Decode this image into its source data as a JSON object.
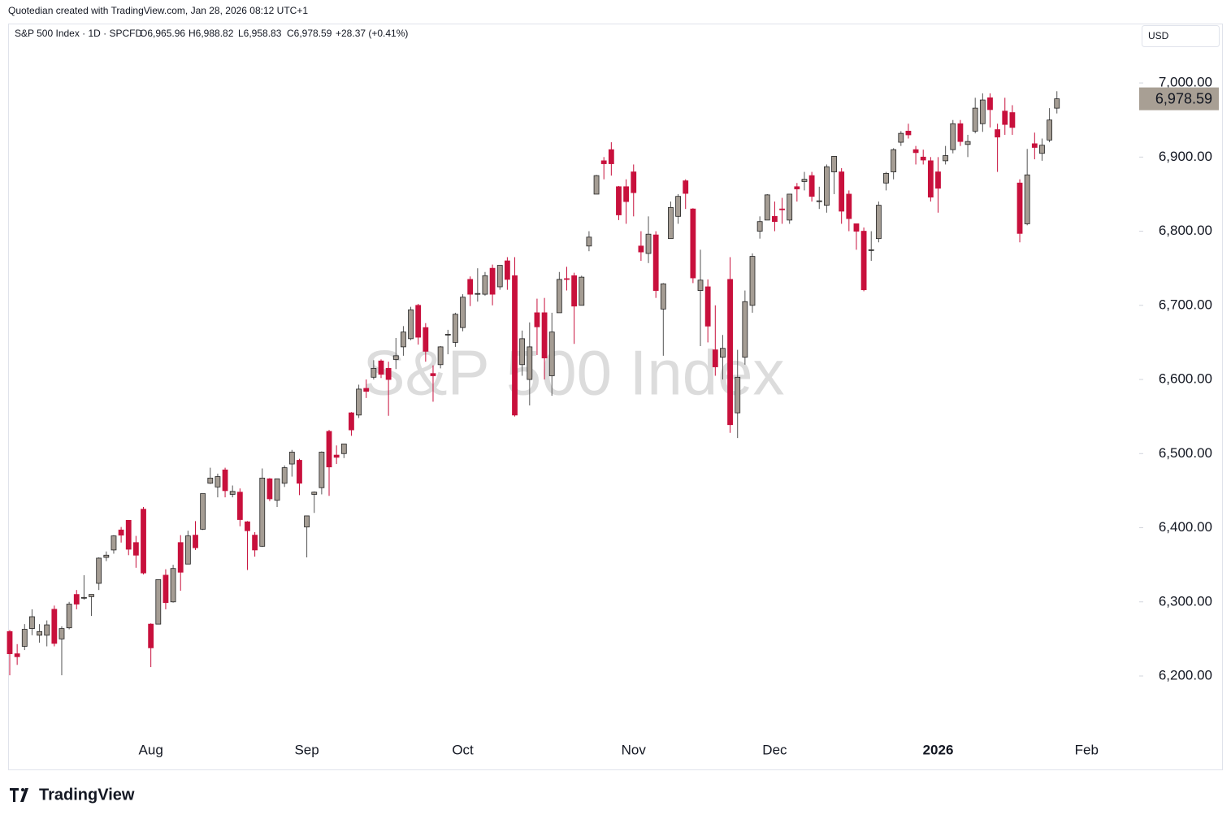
{
  "header": {
    "credit": "Quotedian created with TradingView.com, Jan 28, 2026 08:12 UTC+1"
  },
  "legend": {
    "symbol": "S&P 500 Index · 1D · SPCFD",
    "open": "O6,965.96",
    "high": "H6,988.82",
    "low": "L6,958.83",
    "close": "C6,978.59",
    "change": "+28.37 (+0.41%)"
  },
  "currency": "USD",
  "watermark": "S&P 500 Index",
  "footer": {
    "brand": "TradingView"
  },
  "chart_data": {
    "type": "candlestick",
    "up_color": "#a59d94",
    "down_color": "#c8103c",
    "categories": [
      null,
      null,
      null,
      null,
      null,
      null,
      null,
      null,
      null,
      null,
      null,
      null,
      null,
      null,
      null,
      null,
      null,
      null,
      null,
      "Aug",
      null,
      null,
      null,
      null,
      null,
      null,
      null,
      null,
      null,
      null,
      null,
      null,
      null,
      null,
      null,
      null,
      null,
      null,
      null,
      null,
      "Sep",
      null,
      null,
      null,
      null,
      null,
      null,
      null,
      null,
      null,
      null,
      null,
      null,
      null,
      null,
      null,
      null,
      null,
      null,
      null,
      null,
      "Oct",
      null,
      null,
      null,
      null,
      null,
      null,
      null,
      null,
      null,
      null,
      null,
      null,
      null,
      null,
      null,
      null,
      null,
      null,
      null,
      null,
      null,
      null,
      "Nov",
      null,
      null,
      null,
      null,
      null,
      null,
      null,
      null,
      null,
      null,
      null,
      null,
      null,
      null,
      null,
      null,
      null,
      null,
      "Dec",
      null,
      null,
      null,
      null,
      null,
      null,
      null,
      null,
      null,
      null,
      null,
      null,
      null,
      null,
      null,
      null,
      null,
      null,
      null,
      null,
      null,
      "2026",
      null,
      null,
      null,
      null,
      null,
      null,
      null,
      null,
      null,
      null,
      null,
      null,
      null,
      null,
      null,
      null,
      null,
      null,
      null,
      "Feb"
    ],
    "open": [
      6260,
      6230,
      6240,
      6264,
      6255,
      6255,
      6290,
      6250,
      6265,
      6310,
      6305,
      6307,
      6325,
      6360,
      6370,
      6397,
      6410,
      6380,
      6425,
      6270,
      6270,
      6336,
      6300,
      6380,
      6351,
      6390,
      6398,
      6460,
      6455,
      6478,
      6445,
      6448,
      6408,
      6390,
      6375,
      6466,
      6437,
      6460,
      6486,
      6491,
      6401,
      6445,
      6454,
      6530,
      6498,
      6500,
      6555,
      6552,
      6588,
      6603,
      6625,
      6615,
      6627,
      6644,
      6655,
      6700,
      6670,
      6608,
      6620,
      6660,
      6650,
      6670,
      6735,
      6715,
      6715,
      6750,
      6725,
      6760,
      6740,
      6620,
      6600,
      6690,
      6690,
      6605,
      6690,
      6736,
      6740,
      6700,
      6780,
      6850,
      6895,
      6910,
      6860,
      6860,
      6880,
      6780,
      6770,
      6795,
      6695,
      6790,
      6820,
      6868,
      6830,
      6720,
      6725,
      6640,
      6630,
      6735,
      6555,
      6630,
      6700,
      6800,
      6815,
      6820,
      6830,
      6815,
      6860,
      6867,
      6875,
      6840,
      6835,
      6880,
      6880,
      6850,
      6810,
      6800,
      6775,
      6790,
      6865,
      6880,
      6920,
      6935,
      6910,
      6900,
      6895,
      6880,
      6895,
      6910,
      6945,
      6917,
      6935,
      6945,
      6980,
      6937,
      6962,
      6960,
      6865,
      6810,
      6918,
      6905,
      6923,
      6965.96,
      null,
      null,
      null,
      null
    ],
    "high": [
      6262,
      6243,
      6270,
      6290,
      6270,
      6275,
      6295,
      6267,
      6300,
      6316,
      6336,
      6310,
      6360,
      6368,
      6390,
      6401,
      6410,
      6389,
      6428,
      6271,
      6330,
      6344,
      6350,
      6390,
      6396,
      6409,
      6446,
      6481,
      6473,
      6481,
      6457,
      6453,
      6409,
      6394,
      6480,
      6467,
      6466,
      6484,
      6505,
      6493,
      6416,
      6449,
      6503,
      6532,
      6511,
      6513,
      6556,
      6593,
      6600,
      6626,
      6627,
      6624,
      6656,
      6672,
      6698,
      6702,
      6676,
      6619,
      6645,
      6667,
      6690,
      6715,
      6739,
      6750,
      6745,
      6755,
      6754,
      6765,
      6765,
      6666,
      6677,
      6709,
      6710,
      6690,
      6745,
      6752,
      6744,
      6740,
      6800,
      6876,
      6900,
      6920,
      6861,
      6870,
      6890,
      6800,
      6820,
      6800,
      6730,
      6840,
      6850,
      6870,
      6831,
      6775,
      6735,
      6700,
      6660,
      6765,
      6640,
      6720,
      6770,
      6820,
      6850,
      6840,
      6845,
      6850,
      6865,
      6880,
      6880,
      6860,
      6890,
      6901,
      6885,
      6855,
      6810,
      6805,
      6800,
      6840,
      6880,
      6912,
      6935,
      6945,
      6915,
      6910,
      6900,
      6900,
      6915,
      6950,
      6950,
      6930,
      6980,
      6986,
      6986,
      6945,
      6980,
      6970,
      6870,
      6911,
      6933,
      6925,
      6966,
      6988.82,
      null,
      null,
      null,
      null
    ],
    "low": [
      6201,
      6215,
      6235,
      6255,
      6245,
      6240,
      6240,
      6201,
      6263,
      6290,
      6303,
      6281,
      6316,
      6355,
      6365,
      6380,
      6363,
      6346,
      6337,
      6212,
      6270,
      6290,
      6299,
      6315,
      6351,
      6370,
      6397,
      6459,
      6441,
      6441,
      6441,
      6402,
      6343,
      6361,
      6374,
      6436,
      6428,
      6455,
      6469,
      6444,
      6360,
      6420,
      6445,
      6443,
      6486,
      6494,
      6524,
      6548,
      6575,
      6600,
      6602,
      6551,
      6614,
      6632,
      6653,
      6647,
      6624,
      6570,
      6615,
      6634,
      6644,
      6665,
      6699,
      6705,
      6713,
      6700,
      6721,
      6721,
      6550,
      6605,
      6565,
      6633,
      6600,
      6578,
      6690,
      6720,
      6648,
      6700,
      6773,
      6850,
      6870,
      6875,
      6815,
      6810,
      6820,
      6760,
      6757,
      6710,
      6632,
      6790,
      6810,
      6830,
      6730,
      6645,
      6650,
      6605,
      6600,
      6528,
      6521,
      6620,
      6690,
      6790,
      6815,
      6800,
      6810,
      6810,
      6840,
      6855,
      6840,
      6830,
      6825,
      6850,
      6810,
      6800,
      6775,
      6719,
      6760,
      6785,
      6855,
      6870,
      6915,
      6925,
      6890,
      6890,
      6840,
      6825,
      6890,
      6905,
      6915,
      6900,
      6932,
      6934,
      6940,
      6880,
      6930,
      6930,
      6785,
      6808,
      6897,
      6895,
      6920,
      6958.83,
      null,
      null,
      null,
      null
    ],
    "close": [
      6230,
      6226,
      6263,
      6280,
      6260,
      6269,
      6244,
      6264,
      6297,
      6297,
      6306,
      6310,
      6359,
      6363,
      6389,
      6390,
      6371,
      6363,
      6339,
      6238,
      6330,
      6299,
      6345,
      6340,
      6389,
      6373,
      6446,
      6467,
      6469,
      6450,
      6449,
      6411,
      6396,
      6370,
      6467,
      6439,
      6466,
      6481,
      6502,
      6460,
      6416,
      6448,
      6502,
      6482,
      6495,
      6513,
      6532,
      6587,
      6584,
      6615,
      6607,
      6600,
      6632,
      6664,
      6694,
      6657,
      6638,
      6605,
      6644,
      6661,
      6688,
      6711,
      6715,
      6716,
      6740,
      6715,
      6754,
      6735,
      6552,
      6655,
      6644,
      6671,
      6629,
      6664,
      6735,
      6735,
      6699,
      6738,
      6792,
      6875,
      6891,
      6891,
      6822,
      6840,
      6852,
      6772,
      6796,
      6720,
      6729,
      6832,
      6847,
      6851,
      6737,
      6734,
      6672,
      6617,
      6642,
      6539,
      6603,
      6705,
      6766,
      6813,
      6849,
      6813,
      6829,
      6850,
      6857,
      6870,
      6847,
      6841,
      6887,
      6901,
      6827,
      6817,
      6800,
      6721,
      6775,
      6835,
      6878,
      6910,
      6932,
      6930,
      6906,
      6896,
      6846,
      6858,
      6902,
      6945,
      6921,
      6921,
      6966,
      6977,
      6964,
      6927,
      6944,
      6940,
      6797,
      6876,
      6913,
      6916,
      6950,
      6978.59,
      null,
      null,
      null,
      null
    ],
    "ylim": [
      6120,
      7079
    ],
    "yticks": [
      {
        "value": 6200,
        "label": "6,200.00"
      },
      {
        "value": 6300,
        "label": "6,300.00"
      },
      {
        "value": 6400,
        "label": "6,400.00"
      },
      {
        "value": 6500,
        "label": "6,500.00"
      },
      {
        "value": 6600,
        "label": "6,600.00"
      },
      {
        "value": 6700,
        "label": "6,700.00"
      },
      {
        "value": 6800,
        "label": "6,800.00"
      },
      {
        "value": 6900,
        "label": "6,900.00"
      },
      {
        "value": 7000,
        "label": "7,000.00"
      }
    ],
    "last_price": {
      "value": 6978.59,
      "label": "6,978.59"
    },
    "last_price_color": "#a89f94"
  }
}
